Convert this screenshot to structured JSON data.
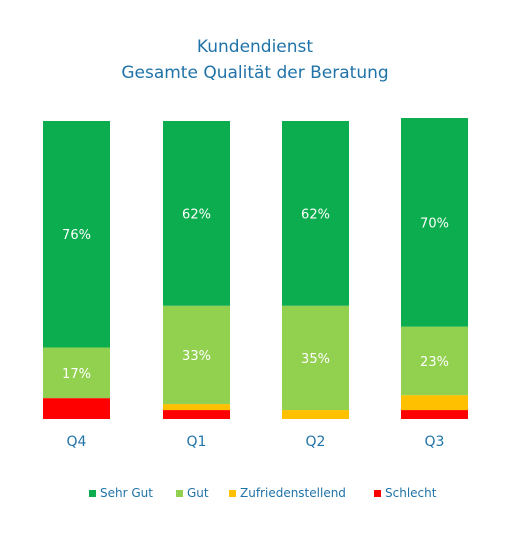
{
  "chart_data": {
    "type": "bar",
    "stacked": true,
    "percent": true,
    "title": "Kundendienst",
    "subtitle": "Gesamte Qualität der Beratung",
    "categories": [
      "Q4",
      "Q1",
      "Q2",
      "Q3"
    ],
    "series": [
      {
        "name": "Sehr Gut",
        "color": "#0bad4e",
        "values": [
          76,
          62,
          62,
          70
        ],
        "labels": [
          "76%",
          "62%",
          "62%",
          "70%"
        ]
      },
      {
        "name": "Gut",
        "color": "#92d050",
        "values": [
          17,
          33,
          35,
          23
        ],
        "labels": [
          "17%",
          "33%",
          "35%",
          "23%"
        ]
      },
      {
        "name": "Zufriedenstellend",
        "color": "#ffc000",
        "values": [
          0,
          2,
          3,
          5
        ],
        "labels": [
          "",
          "",
          "",
          ""
        ]
      },
      {
        "name": "Schlecht",
        "color": "#ff0000",
        "values": [
          7,
          3,
          0,
          3
        ],
        "labels": [
          "",
          "",
          "",
          ""
        ]
      }
    ],
    "ylim": [
      0,
      100
    ],
    "grid": false,
    "legend_position": "bottom"
  }
}
